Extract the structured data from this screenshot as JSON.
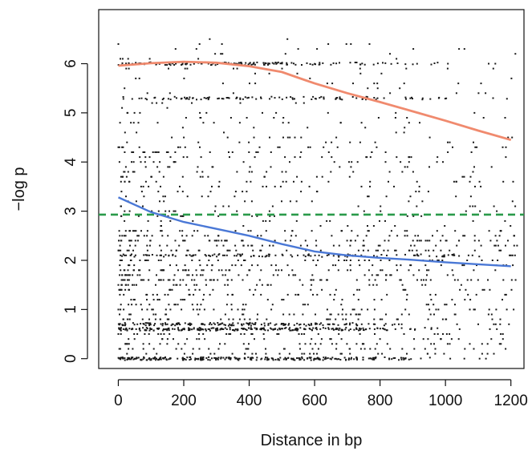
{
  "chart_data": {
    "type": "scatter",
    "xlabel": "Distance in bp",
    "ylabel": "−log p",
    "xlim": [
      -60,
      1240
    ],
    "ylim": [
      -0.2,
      7.1
    ],
    "x_ticks": [
      0,
      200,
      400,
      600,
      800,
      1000,
      1200
    ],
    "x_tick_labels": [
      "0",
      "200",
      "400",
      "600",
      "800",
      "1000",
      "1200"
    ],
    "y_ticks": [
      0,
      1,
      2,
      3,
      4,
      5,
      6
    ],
    "y_tick_labels": [
      "0",
      "1",
      "2",
      "3",
      "4",
      "5",
      "6"
    ],
    "grid": false,
    "colors": {
      "points": "#1a1a1a",
      "upper_curve": "#f08a6e",
      "lower_curve": "#4a78d6",
      "threshold": "#2a9a4a"
    },
    "threshold_line": {
      "y": 2.93,
      "style": "dashed"
    },
    "upper_curve": {
      "x": [
        0,
        100,
        200,
        300,
        400,
        500,
        600,
        700,
        800,
        900,
        1000,
        1100,
        1200
      ],
      "y": [
        5.96,
        6.01,
        6.04,
        6.02,
        5.95,
        5.83,
        5.6,
        5.4,
        5.22,
        5.03,
        4.84,
        4.64,
        4.45
      ]
    },
    "lower_curve": {
      "x": [
        0,
        100,
        200,
        300,
        400,
        500,
        600,
        700,
        800,
        900,
        1000,
        1100,
        1200
      ],
      "y": [
        3.28,
        2.98,
        2.78,
        2.64,
        2.5,
        2.33,
        2.18,
        2.1,
        2.05,
        2.01,
        1.96,
        1.92,
        1.88
      ]
    },
    "scatter_bands": [
      {
        "y": 0.0,
        "x": [
          0,
          1020
        ],
        "density": 1.0
      },
      {
        "y": 0.6,
        "x": [
          0,
          1000
        ],
        "density": 0.85
      },
      {
        "y": 0.7,
        "x": [
          0,
          900
        ],
        "density": 0.6
      },
      {
        "y": 6.0,
        "x": [
          0,
          1000
        ],
        "density": 0.55
      },
      {
        "y": 5.3,
        "x": [
          0,
          1200
        ],
        "density": 0.35
      },
      {
        "y": 2.1,
        "x": [
          0,
          1200
        ],
        "density": 0.3
      }
    ]
  }
}
